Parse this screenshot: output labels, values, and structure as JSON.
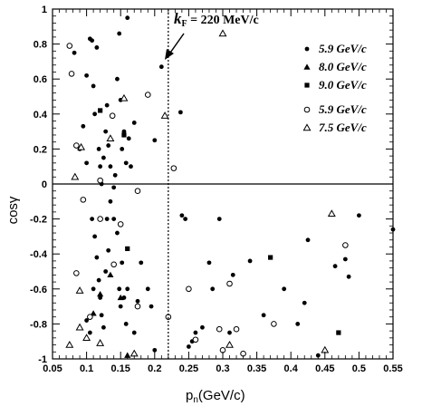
{
  "chart_data": {
    "type": "scatter",
    "xlabel": "p",
    "xlabel_sub": "n",
    "xlabel_unit": "(GeV/c)",
    "ylabel": "cosγ",
    "xlim": [
      0.05,
      0.55
    ],
    "ylim": [
      -1,
      1
    ],
    "x_ticks": [
      0.05,
      0.1,
      0.15,
      0.2,
      0.25,
      0.3,
      0.35,
      0.4,
      0.45,
      0.5,
      0.55
    ],
    "x_tick_labels": [
      "0.05",
      "0.1",
      "0.15",
      "0.2",
      "0.25",
      "0.3",
      "0.35",
      "0.4",
      "0.45",
      "0.5",
      "0.55"
    ],
    "y_ticks": [
      -1,
      -0.8,
      -0.6,
      -0.4,
      -0.2,
      0,
      0.2,
      0.4,
      0.6,
      0.8,
      1
    ],
    "y_tick_labels": [
      "-1",
      "-0.8",
      "-0.6",
      "-0.4",
      "-0.2",
      "0",
      "0.2",
      "0.4",
      "0.6",
      "0.8",
      "1"
    ],
    "grid": false,
    "legend_position": "top-right",
    "reference_lines": [
      {
        "orientation": "horizontal",
        "value": 0,
        "style": "solid"
      },
      {
        "orientation": "vertical",
        "value": 0.22,
        "style": "dotted"
      }
    ],
    "annotation": {
      "text_k": "k",
      "text_sub": "F",
      "text_rest": " = 220 MeV/c",
      "points_to": [
        0.22,
        0.75
      ]
    },
    "series": [
      {
        "name": "5.9 GeV/c",
        "marker": "circle-filled",
        "points": [
          [
            0.082,
            0.75
          ],
          [
            0.09,
            0.2
          ],
          [
            0.095,
            0.33
          ],
          [
            0.1,
            0.12
          ],
          [
            0.1,
            0.62
          ],
          [
            0.105,
            0.83
          ],
          [
            0.108,
            0.82
          ],
          [
            0.11,
            0.56
          ],
          [
            0.112,
            0.4
          ],
          [
            0.115,
            0.78
          ],
          [
            0.118,
            0.2
          ],
          [
            0.12,
            0.1
          ],
          [
            0.122,
            0.0
          ],
          [
            0.125,
            0.15
          ],
          [
            0.128,
            0.3
          ],
          [
            0.13,
            0.45
          ],
          [
            0.132,
            0.22
          ],
          [
            0.135,
            0.1
          ],
          [
            0.14,
            -0.02
          ],
          [
            0.142,
            0.05
          ],
          [
            0.145,
            0.6
          ],
          [
            0.148,
            0.86
          ],
          [
            0.15,
            0.48
          ],
          [
            0.152,
            0.2
          ],
          [
            0.155,
            0.3
          ],
          [
            0.158,
            0.12
          ],
          [
            0.16,
            0.95
          ],
          [
            0.162,
            0.26
          ],
          [
            0.165,
            0.1
          ],
          [
            0.17,
            0.35
          ],
          [
            0.2,
            0.25
          ],
          [
            0.21,
            0.67
          ],
          [
            0.238,
            0.41
          ],
          [
            0.108,
            -0.2
          ],
          [
            0.112,
            -0.3
          ],
          [
            0.115,
            -0.42
          ],
          [
            0.118,
            -0.55
          ],
          [
            0.12,
            -0.65
          ],
          [
            0.122,
            -0.75
          ],
          [
            0.125,
            -0.82
          ],
          [
            0.128,
            -0.5
          ],
          [
            0.13,
            -0.2
          ],
          [
            0.132,
            -0.38
          ],
          [
            0.135,
            -0.1
          ],
          [
            0.14,
            -0.2
          ],
          [
            0.145,
            -0.28
          ],
          [
            0.148,
            -0.6
          ],
          [
            0.15,
            -0.7
          ],
          [
            0.152,
            -0.45
          ],
          [
            0.155,
            -0.65
          ],
          [
            0.158,
            -0.8
          ],
          [
            0.16,
            -0.6
          ],
          [
            0.17,
            -0.85
          ],
          [
            0.175,
            -0.67
          ],
          [
            0.18,
            -0.45
          ],
          [
            0.19,
            -0.6
          ],
          [
            0.195,
            -0.7
          ],
          [
            0.2,
            -0.95
          ],
          [
            0.1,
            -0.78
          ],
          [
            0.105,
            -0.85
          ],
          [
            0.11,
            -0.6
          ],
          [
            0.24,
            -0.18
          ],
          [
            0.245,
            -0.2
          ],
          [
            0.25,
            -0.93
          ],
          [
            0.255,
            -0.9
          ],
          [
            0.26,
            -0.85
          ],
          [
            0.27,
            -0.82
          ],
          [
            0.28,
            -0.45
          ],
          [
            0.285,
            -0.6
          ],
          [
            0.295,
            -0.2
          ],
          [
            0.31,
            -0.85
          ],
          [
            0.315,
            -0.52
          ],
          [
            0.34,
            -0.44
          ],
          [
            0.36,
            -0.75
          ],
          [
            0.39,
            -0.6
          ],
          [
            0.41,
            -0.8
          ],
          [
            0.42,
            -0.68
          ],
          [
            0.425,
            -0.32
          ],
          [
            0.44,
            -0.98
          ],
          [
            0.465,
            -0.47
          ],
          [
            0.48,
            -0.43
          ],
          [
            0.485,
            -0.53
          ],
          [
            0.5,
            -0.18
          ],
          [
            0.55,
            -0.26
          ]
        ]
      },
      {
        "name": "8.0 GeV/c",
        "marker": "triangle-filled",
        "points": [
          [
            0.11,
            -0.74
          ],
          [
            0.12,
            -0.63
          ],
          [
            0.135,
            -0.52
          ],
          [
            0.15,
            -0.65
          ],
          [
            0.16,
            -0.98
          ]
        ]
      },
      {
        "name": "9.0 GeV/c",
        "marker": "square-filled",
        "points": [
          [
            0.12,
            0.42
          ],
          [
            0.155,
            0.28
          ],
          [
            0.16,
            -0.37
          ],
          [
            0.37,
            -0.42
          ],
          [
            0.47,
            -0.85
          ]
        ]
      },
      {
        "name": "5.9 GeV/c",
        "marker": "circle-open",
        "points": [
          [
            0.075,
            0.79
          ],
          [
            0.078,
            0.63
          ],
          [
            0.085,
            0.22
          ],
          [
            0.095,
            -0.09
          ],
          [
            0.12,
            0.02
          ],
          [
            0.138,
            0.39
          ],
          [
            0.14,
            -0.46
          ],
          [
            0.15,
            -0.23
          ],
          [
            0.175,
            -0.04
          ],
          [
            0.19,
            0.51
          ],
          [
            0.22,
            -0.76
          ],
          [
            0.228,
            0.09
          ],
          [
            0.25,
            -0.6
          ],
          [
            0.26,
            -0.89
          ],
          [
            0.295,
            -0.83
          ],
          [
            0.3,
            -0.95
          ],
          [
            0.31,
            -0.57
          ],
          [
            0.32,
            -0.83
          ],
          [
            0.33,
            -0.97
          ],
          [
            0.375,
            -0.8
          ],
          [
            0.48,
            -0.35
          ],
          [
            0.085,
            -0.51
          ],
          [
            0.105,
            -0.76
          ],
          [
            0.12,
            -0.2
          ],
          [
            0.175,
            -0.7
          ]
        ]
      },
      {
        "name": "7.5 GeV/c",
        "marker": "triangle-open",
        "points": [
          [
            0.083,
            0.04
          ],
          [
            0.092,
            0.21
          ],
          [
            0.09,
            -0.61
          ],
          [
            0.1,
            -0.88
          ],
          [
            0.12,
            -0.91
          ],
          [
            0.135,
            0.26
          ],
          [
            0.155,
            0.49
          ],
          [
            0.17,
            -0.97
          ],
          [
            0.215,
            0.39
          ],
          [
            0.3,
            0.86
          ],
          [
            0.31,
            -0.92
          ],
          [
            0.45,
            -0.95
          ],
          [
            0.46,
            -0.17
          ],
          [
            0.075,
            -0.92
          ],
          [
            0.09,
            -0.82
          ]
        ]
      }
    ]
  }
}
